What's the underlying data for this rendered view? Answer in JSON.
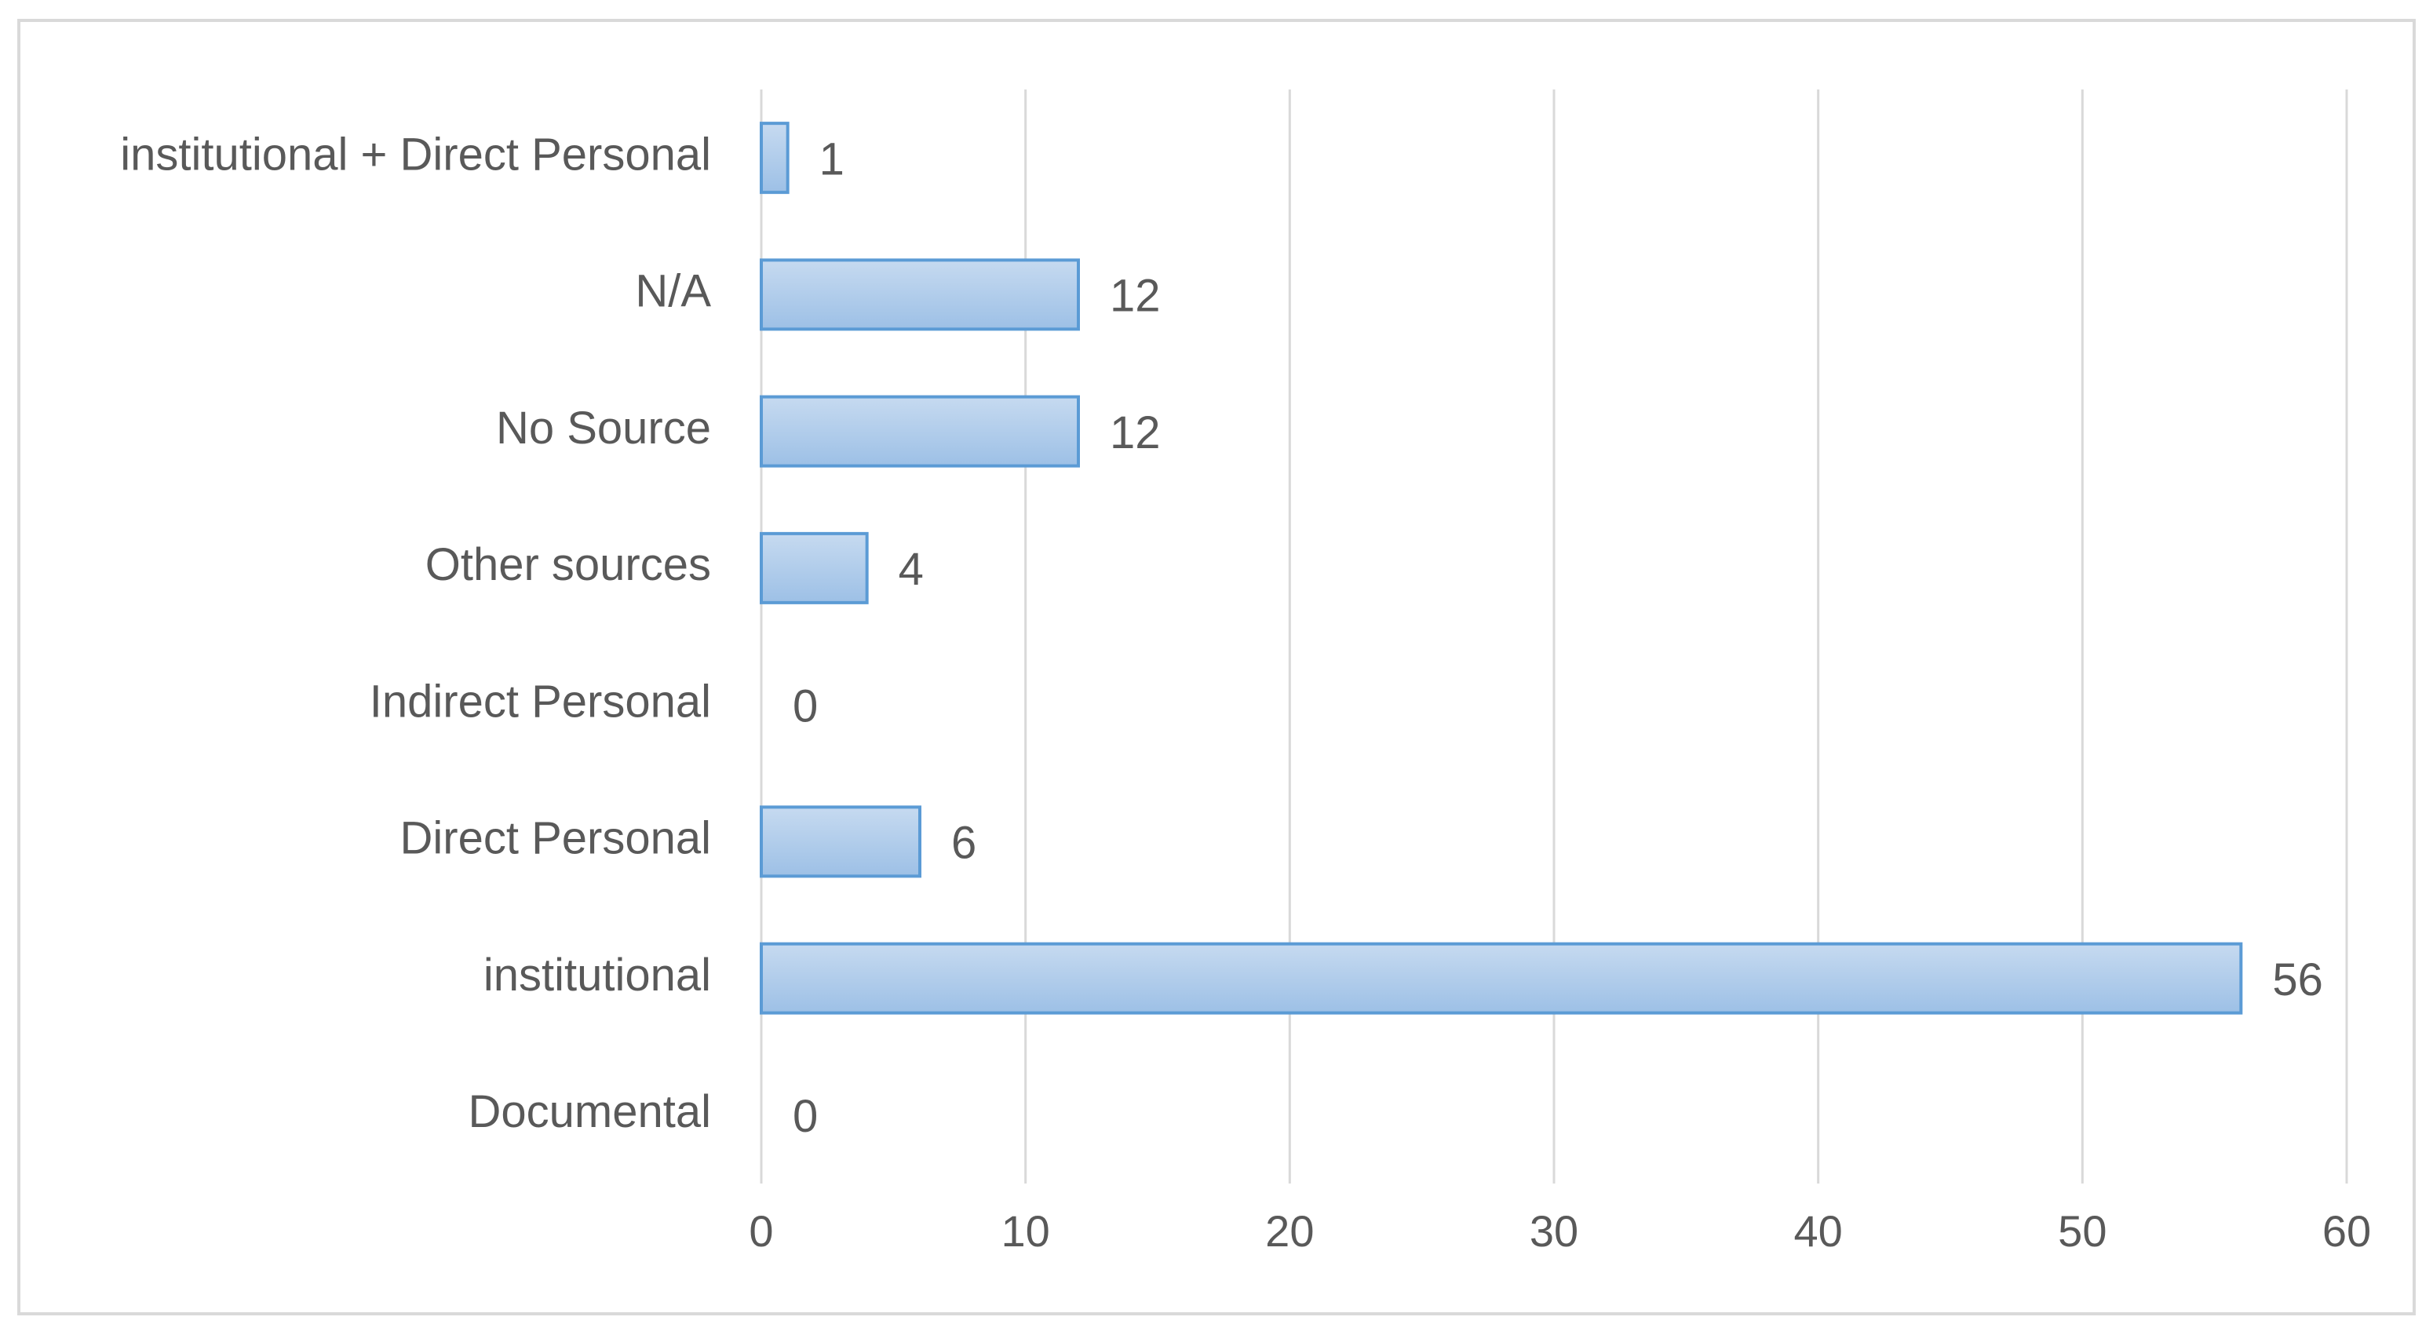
{
  "chart_data": {
    "type": "bar",
    "orientation": "horizontal",
    "categories": [
      "institutional + Direct Personal",
      "N/A",
      "No Source",
      "Other sources",
      "Indirect Personal",
      "Direct Personal",
      "institutional",
      "Documental"
    ],
    "values": [
      1,
      12,
      12,
      4,
      0,
      6,
      56,
      0
    ],
    "data_labels": [
      "1",
      "12",
      "12",
      "4",
      "0",
      "6",
      "56",
      "0"
    ],
    "x_ticks": [
      "0",
      "10",
      "20",
      "30",
      "40",
      "50",
      "60"
    ],
    "xlim": [
      0,
      60
    ],
    "grid": true,
    "legend": "none",
    "title": "",
    "xlabel": "",
    "ylabel": "",
    "colors": {
      "bar_fill_top": "#c6daf0",
      "bar_fill_bottom": "#9dc0e6",
      "bar_border": "#5b9bd5",
      "grid": "#d9d9d9",
      "text": "#595959",
      "frame": "#d9d9d9"
    }
  }
}
